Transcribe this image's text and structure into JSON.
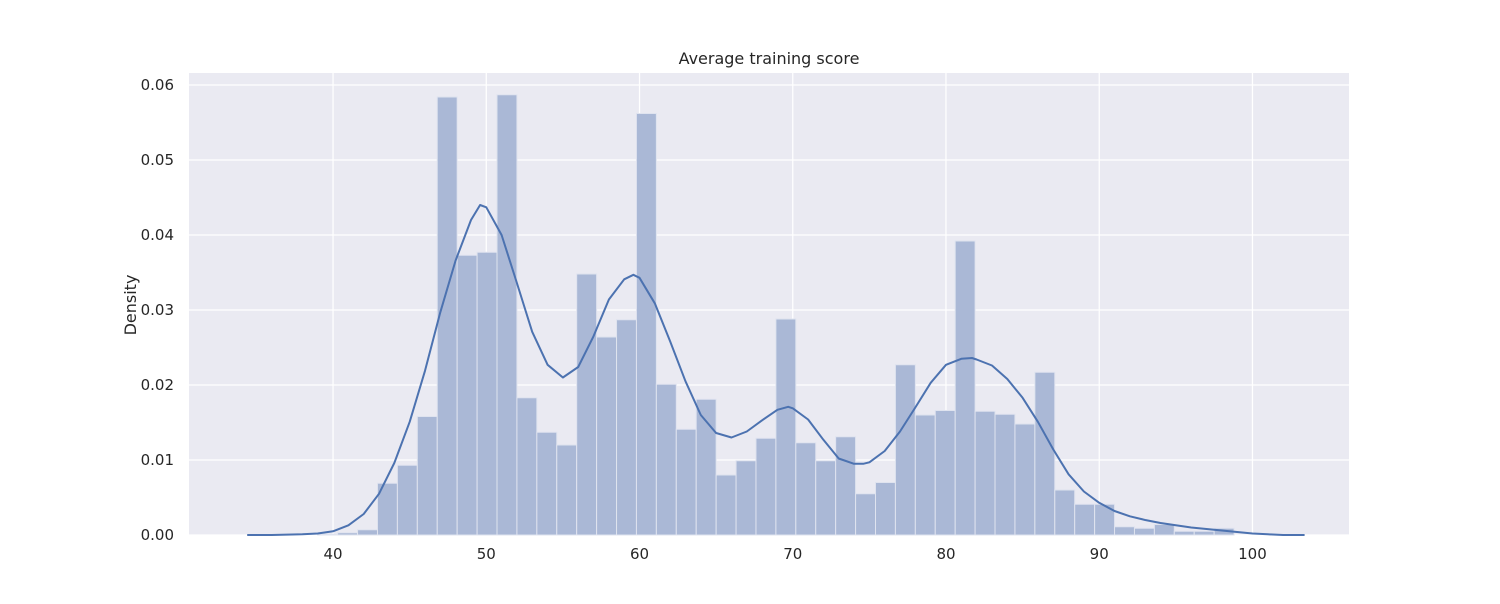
{
  "chart_data": {
    "type": "bar",
    "title": "Average training score",
    "xlabel": "",
    "ylabel": "Density",
    "xlim": [
      30.6,
      106.3
    ],
    "ylim": [
      0,
      0.0616
    ],
    "xticks": [
      40,
      50,
      60,
      70,
      80,
      90,
      100
    ],
    "xtick_labels": [
      "40",
      "50",
      "60",
      "70",
      "80",
      "90",
      "100"
    ],
    "yticks": [
      0,
      0.01,
      0.02,
      0.03,
      0.04,
      0.05,
      0.06
    ],
    "ytick_labels": [
      "0.00",
      "0.01",
      "0.02",
      "0.03",
      "0.04",
      "0.05",
      "0.06"
    ],
    "grid": true,
    "colors": {
      "background": "#eaeaf2",
      "grid": "#ffffff",
      "bars": "#aab8d6",
      "bar_edge": "#dfe3ef",
      "kde_line": "#4c72b0"
    },
    "histogram": {
      "bin_edges": [
        39,
        40.3,
        41.6,
        42.9,
        44.2,
        45.5,
        46.8,
        48.1,
        49.4,
        50.7,
        52.0,
        53.3,
        54.6,
        55.9,
        57.2,
        58.5,
        59.8,
        61.1,
        62.4,
        63.7,
        65.0,
        66.3,
        67.6,
        68.9,
        70.2,
        71.5,
        72.8,
        74.1,
        75.4,
        76.7,
        78.0,
        79.3,
        80.6,
        81.9,
        83.2,
        84.5,
        85.8,
        87.1,
        88.4,
        89.7,
        91.0,
        92.3,
        93.6,
        94.9,
        96.2,
        97.5,
        98.8
      ],
      "densities": [
        0.0001,
        0.0003,
        0.0007,
        0.0069,
        0.0093,
        0.0158,
        0.0584,
        0.0373,
        0.0377,
        0.0587,
        0.0183,
        0.0137,
        0.012,
        0.0348,
        0.0264,
        0.0287,
        0.0562,
        0.0201,
        0.0141,
        0.0181,
        0.008,
        0.0099,
        0.0129,
        0.0288,
        0.0123,
        0.0099,
        0.0131,
        0.0055,
        0.007,
        0.0227,
        0.016,
        0.0166,
        0.0392,
        0.0165,
        0.0161,
        0.0148,
        0.0217,
        0.006,
        0.0041,
        0.0041,
        0.0011,
        0.0009,
        0.0014,
        0.0005,
        0.0005,
        0.0009
      ]
    },
    "series": [
      {
        "type": "line",
        "x": [
          34.4,
          36,
          38,
          39,
          40,
          41,
          42,
          43,
          44,
          45,
          46,
          47,
          48,
          49,
          49.6,
          50,
          51,
          52,
          53,
          54,
          55,
          56,
          57,
          58,
          59,
          59.6,
          60,
          61,
          62,
          63,
          64,
          65,
          66,
          67,
          68,
          69,
          69.7,
          70,
          71,
          72,
          73,
          74,
          74.6,
          75,
          76,
          77,
          78,
          79,
          80,
          81,
          81.7,
          82,
          83,
          84,
          85,
          86,
          87,
          88,
          89,
          90,
          91,
          92,
          93,
          94,
          95,
          96,
          97,
          98,
          99,
          100,
          101,
          102,
          103.4
        ],
        "y": [
          0.0,
          0.0,
          0.0001,
          0.0002,
          0.0005,
          0.0013,
          0.0028,
          0.0055,
          0.0096,
          0.0151,
          0.0219,
          0.0297,
          0.0366,
          0.042,
          0.044,
          0.0437,
          0.04,
          0.0336,
          0.0271,
          0.0227,
          0.021,
          0.0224,
          0.0265,
          0.0314,
          0.0341,
          0.0347,
          0.0343,
          0.0309,
          0.0258,
          0.0205,
          0.016,
          0.0136,
          0.013,
          0.0138,
          0.0153,
          0.0167,
          0.0171,
          0.0169,
          0.0154,
          0.0127,
          0.0102,
          0.0095,
          0.0095,
          0.0097,
          0.0112,
          0.0138,
          0.017,
          0.0203,
          0.0227,
          0.0235,
          0.0236,
          0.0234,
          0.0226,
          0.0208,
          0.0183,
          0.0151,
          0.0114,
          0.0081,
          0.0058,
          0.0043,
          0.0032,
          0.0025,
          0.002,
          0.0016,
          0.0013,
          0.001,
          0.0008,
          0.0006,
          0.0004,
          0.0002,
          0.0001,
          0.0,
          0.0
        ]
      }
    ]
  }
}
